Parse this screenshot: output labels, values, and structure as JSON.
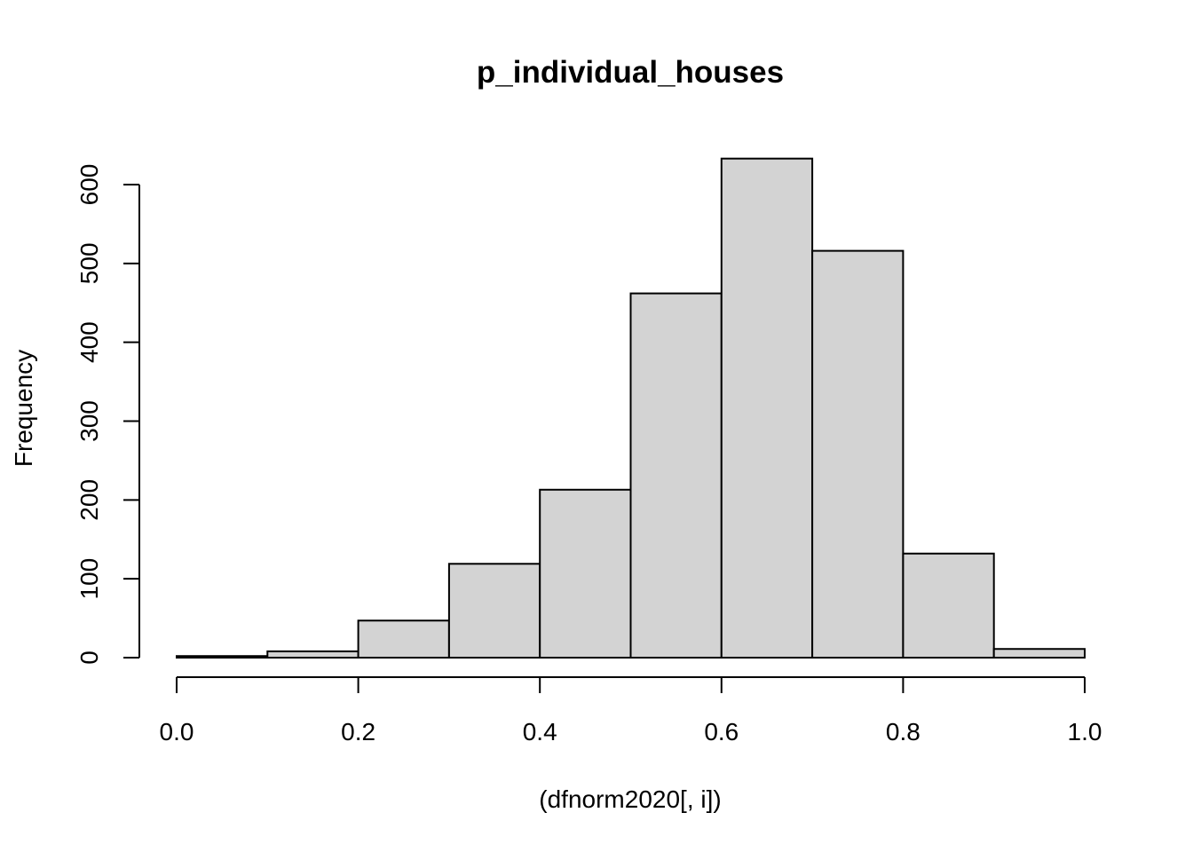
{
  "chart_data": {
    "type": "bar",
    "title": "p_individual_houses",
    "xlabel": "(dfnorm2020[, i])",
    "ylabel": "Frequency",
    "bins": [
      {
        "start": 0.0,
        "end": 0.1,
        "value": 2
      },
      {
        "start": 0.1,
        "end": 0.2,
        "value": 8
      },
      {
        "start": 0.2,
        "end": 0.3,
        "value": 47
      },
      {
        "start": 0.3,
        "end": 0.4,
        "value": 119
      },
      {
        "start": 0.4,
        "end": 0.5,
        "value": 213
      },
      {
        "start": 0.5,
        "end": 0.6,
        "value": 462
      },
      {
        "start": 0.6,
        "end": 0.7,
        "value": 633
      },
      {
        "start": 0.7,
        "end": 0.8,
        "value": 516
      },
      {
        "start": 0.8,
        "end": 0.9,
        "value": 132
      },
      {
        "start": 0.9,
        "end": 1.0,
        "value": 11
      }
    ],
    "xlim": [
      0,
      1
    ],
    "xticks": [
      "0.0",
      "0.2",
      "0.4",
      "0.6",
      "0.8",
      "1.0"
    ],
    "yticks": [
      "0",
      "100",
      "200",
      "300",
      "400",
      "500",
      "600"
    ],
    "ylim": [
      0,
      600
    ],
    "grid": false,
    "legend": "none"
  }
}
